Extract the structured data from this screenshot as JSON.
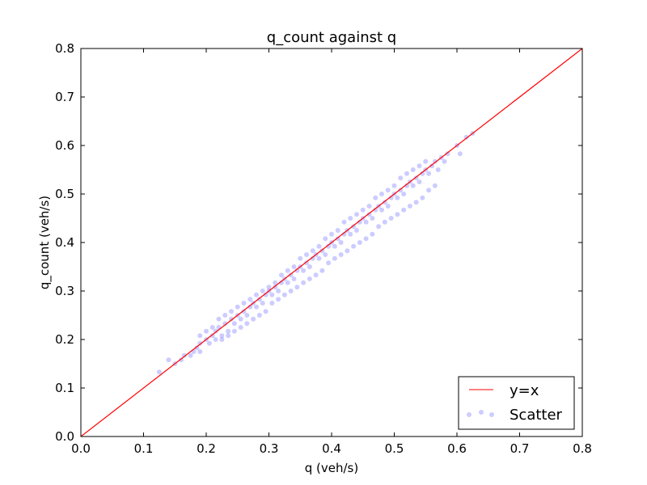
{
  "chart_data": {
    "type": "scatter",
    "title": "q_count against q",
    "xlabel": "q (veh/s)",
    "ylabel": "q_count (veh/s)",
    "xlim": [
      0.0,
      0.8
    ],
    "ylim": [
      0.0,
      0.8
    ],
    "xticks": [
      "0.0",
      "0.1",
      "0.2",
      "0.3",
      "0.4",
      "0.5",
      "0.6",
      "0.7",
      "0.8"
    ],
    "yticks": [
      "0.0",
      "0.1",
      "0.2",
      "0.3",
      "0.4",
      "0.5",
      "0.6",
      "0.7",
      "0.8"
    ],
    "grid": false,
    "legend_position": "lower-right",
    "series": [
      {
        "name": "y=x",
        "kind": "line",
        "color": "#ff0000",
        "points": [
          [
            0.0,
            0.0
          ],
          [
            0.8,
            0.8
          ]
        ]
      },
      {
        "name": "Scatter",
        "kind": "scatter",
        "color": "#0000ff",
        "opacity": 0.2,
        "points": [
          [
            0.125,
            0.133
          ],
          [
            0.14,
            0.158
          ],
          [
            0.15,
            0.15
          ],
          [
            0.16,
            0.158
          ],
          [
            0.165,
            0.167
          ],
          [
            0.175,
            0.167
          ],
          [
            0.18,
            0.175
          ],
          [
            0.185,
            0.183
          ],
          [
            0.19,
            0.175
          ],
          [
            0.19,
            0.192
          ],
          [
            0.2,
            0.2
          ],
          [
            0.205,
            0.192
          ],
          [
            0.21,
            0.208
          ],
          [
            0.215,
            0.2
          ],
          [
            0.215,
            0.217
          ],
          [
            0.22,
            0.225
          ],
          [
            0.225,
            0.208
          ],
          [
            0.23,
            0.233
          ],
          [
            0.235,
            0.217
          ],
          [
            0.24,
            0.242
          ],
          [
            0.245,
            0.233
          ],
          [
            0.25,
            0.25
          ],
          [
            0.255,
            0.242
          ],
          [
            0.26,
            0.258
          ],
          [
            0.265,
            0.25
          ],
          [
            0.27,
            0.267
          ],
          [
            0.275,
            0.275
          ],
          [
            0.28,
            0.267
          ],
          [
            0.285,
            0.283
          ],
          [
            0.29,
            0.275
          ],
          [
            0.295,
            0.292
          ],
          [
            0.3,
            0.3
          ],
          [
            0.305,
            0.292
          ],
          [
            0.31,
            0.308
          ],
          [
            0.315,
            0.3
          ],
          [
            0.32,
            0.317
          ],
          [
            0.325,
            0.325
          ],
          [
            0.33,
            0.317
          ],
          [
            0.335,
            0.333
          ],
          [
            0.34,
            0.325
          ],
          [
            0.345,
            0.342
          ],
          [
            0.35,
            0.35
          ],
          [
            0.355,
            0.342
          ],
          [
            0.36,
            0.358
          ],
          [
            0.365,
            0.35
          ],
          [
            0.37,
            0.367
          ],
          [
            0.375,
            0.375
          ],
          [
            0.38,
            0.367
          ],
          [
            0.385,
            0.383
          ],
          [
            0.39,
            0.375
          ],
          [
            0.395,
            0.392
          ],
          [
            0.4,
            0.4
          ],
          [
            0.405,
            0.392
          ],
          [
            0.41,
            0.408
          ],
          [
            0.415,
            0.4
          ],
          [
            0.42,
            0.417
          ],
          [
            0.425,
            0.425
          ],
          [
            0.43,
            0.417
          ],
          [
            0.435,
            0.433
          ],
          [
            0.44,
            0.425
          ],
          [
            0.445,
            0.442
          ],
          [
            0.45,
            0.45
          ],
          [
            0.455,
            0.442
          ],
          [
            0.46,
            0.458
          ],
          [
            0.465,
            0.45
          ],
          [
            0.47,
            0.467
          ],
          [
            0.475,
            0.475
          ],
          [
            0.48,
            0.467
          ],
          [
            0.485,
            0.483
          ],
          [
            0.49,
            0.475
          ],
          [
            0.495,
            0.492
          ],
          [
            0.5,
            0.5
          ],
          [
            0.505,
            0.492
          ],
          [
            0.51,
            0.508
          ],
          [
            0.515,
            0.5
          ],
          [
            0.52,
            0.517
          ],
          [
            0.525,
            0.525
          ],
          [
            0.53,
            0.517
          ],
          [
            0.535,
            0.533
          ],
          [
            0.54,
            0.525
          ],
          [
            0.545,
            0.542
          ],
          [
            0.55,
            0.55
          ],
          [
            0.555,
            0.542
          ],
          [
            0.56,
            0.558
          ],
          [
            0.565,
            0.567
          ],
          [
            0.575,
            0.575
          ],
          [
            0.585,
            0.583
          ],
          [
            0.6,
            0.6
          ],
          [
            0.605,
            0.583
          ],
          [
            0.615,
            0.617
          ],
          [
            0.625,
            0.625
          ],
          [
            0.19,
            0.208
          ],
          [
            0.2,
            0.217
          ],
          [
            0.21,
            0.225
          ],
          [
            0.22,
            0.242
          ],
          [
            0.23,
            0.25
          ],
          [
            0.24,
            0.258
          ],
          [
            0.25,
            0.267
          ],
          [
            0.26,
            0.275
          ],
          [
            0.27,
            0.283
          ],
          [
            0.28,
            0.292
          ],
          [
            0.29,
            0.3
          ],
          [
            0.3,
            0.308
          ],
          [
            0.31,
            0.317
          ],
          [
            0.32,
            0.333
          ],
          [
            0.33,
            0.342
          ],
          [
            0.34,
            0.35
          ],
          [
            0.35,
            0.367
          ],
          [
            0.36,
            0.375
          ],
          [
            0.37,
            0.383
          ],
          [
            0.38,
            0.392
          ],
          [
            0.39,
            0.408
          ],
          [
            0.4,
            0.417
          ],
          [
            0.41,
            0.425
          ],
          [
            0.42,
            0.442
          ],
          [
            0.43,
            0.45
          ],
          [
            0.44,
            0.458
          ],
          [
            0.45,
            0.467
          ],
          [
            0.46,
            0.475
          ],
          [
            0.47,
            0.492
          ],
          [
            0.48,
            0.5
          ],
          [
            0.49,
            0.508
          ],
          [
            0.5,
            0.517
          ],
          [
            0.51,
            0.533
          ],
          [
            0.52,
            0.542
          ],
          [
            0.53,
            0.55
          ],
          [
            0.54,
            0.558
          ],
          [
            0.55,
            0.567
          ],
          [
            0.225,
            0.2
          ],
          [
            0.235,
            0.208
          ],
          [
            0.245,
            0.217
          ],
          [
            0.255,
            0.225
          ],
          [
            0.265,
            0.233
          ],
          [
            0.275,
            0.242
          ],
          [
            0.285,
            0.25
          ],
          [
            0.295,
            0.258
          ],
          [
            0.305,
            0.275
          ],
          [
            0.315,
            0.283
          ],
          [
            0.325,
            0.292
          ],
          [
            0.335,
            0.3
          ],
          [
            0.345,
            0.308
          ],
          [
            0.355,
            0.317
          ],
          [
            0.365,
            0.325
          ],
          [
            0.375,
            0.333
          ],
          [
            0.385,
            0.342
          ],
          [
            0.395,
            0.358
          ],
          [
            0.405,
            0.367
          ],
          [
            0.415,
            0.375
          ],
          [
            0.425,
            0.383
          ],
          [
            0.435,
            0.392
          ],
          [
            0.445,
            0.4
          ],
          [
            0.455,
            0.408
          ],
          [
            0.465,
            0.417
          ],
          [
            0.475,
            0.433
          ],
          [
            0.485,
            0.442
          ],
          [
            0.495,
            0.45
          ],
          [
            0.505,
            0.458
          ],
          [
            0.515,
            0.467
          ],
          [
            0.525,
            0.475
          ],
          [
            0.535,
            0.483
          ],
          [
            0.545,
            0.492
          ],
          [
            0.555,
            0.508
          ],
          [
            0.565,
            0.517
          ],
          [
            0.57,
            0.55
          ],
          [
            0.58,
            0.567
          ]
        ]
      }
    ]
  }
}
